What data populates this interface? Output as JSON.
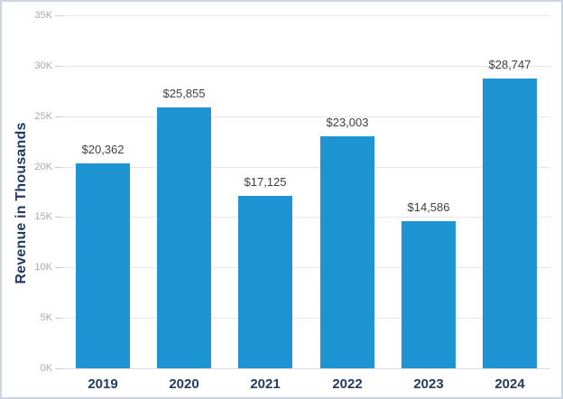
{
  "chart_data": {
    "type": "bar",
    "categories": [
      "2019",
      "2020",
      "2021",
      "2022",
      "2023",
      "2024"
    ],
    "values": [
      20362,
      25855,
      17125,
      23003,
      14586,
      28747
    ],
    "value_labels": [
      "$20,362",
      "$25,855",
      "$17,125",
      "$23,003",
      "$14,586",
      "$28,747"
    ],
    "title": "",
    "xlabel": "",
    "ylabel": "Revenue in Thousands",
    "ylim": [
      0,
      35000
    ],
    "ytick_step": 5000,
    "ytick_labels": [
      "0K",
      "5K",
      "10K",
      "15K",
      "20K",
      "25K",
      "30K",
      "35K"
    ],
    "grid": true,
    "legend_position": "none",
    "colors": {
      "bar": "#1e94d2",
      "axis_title": "#1f3864",
      "x_tick_label": "#243a5e",
      "y_tick_label": "#a8a8a8",
      "value_label": "#3f3f3f",
      "gridline": "#e4e9ef",
      "frame_border": "#cdd5e3",
      "background": "#ffffff"
    }
  }
}
